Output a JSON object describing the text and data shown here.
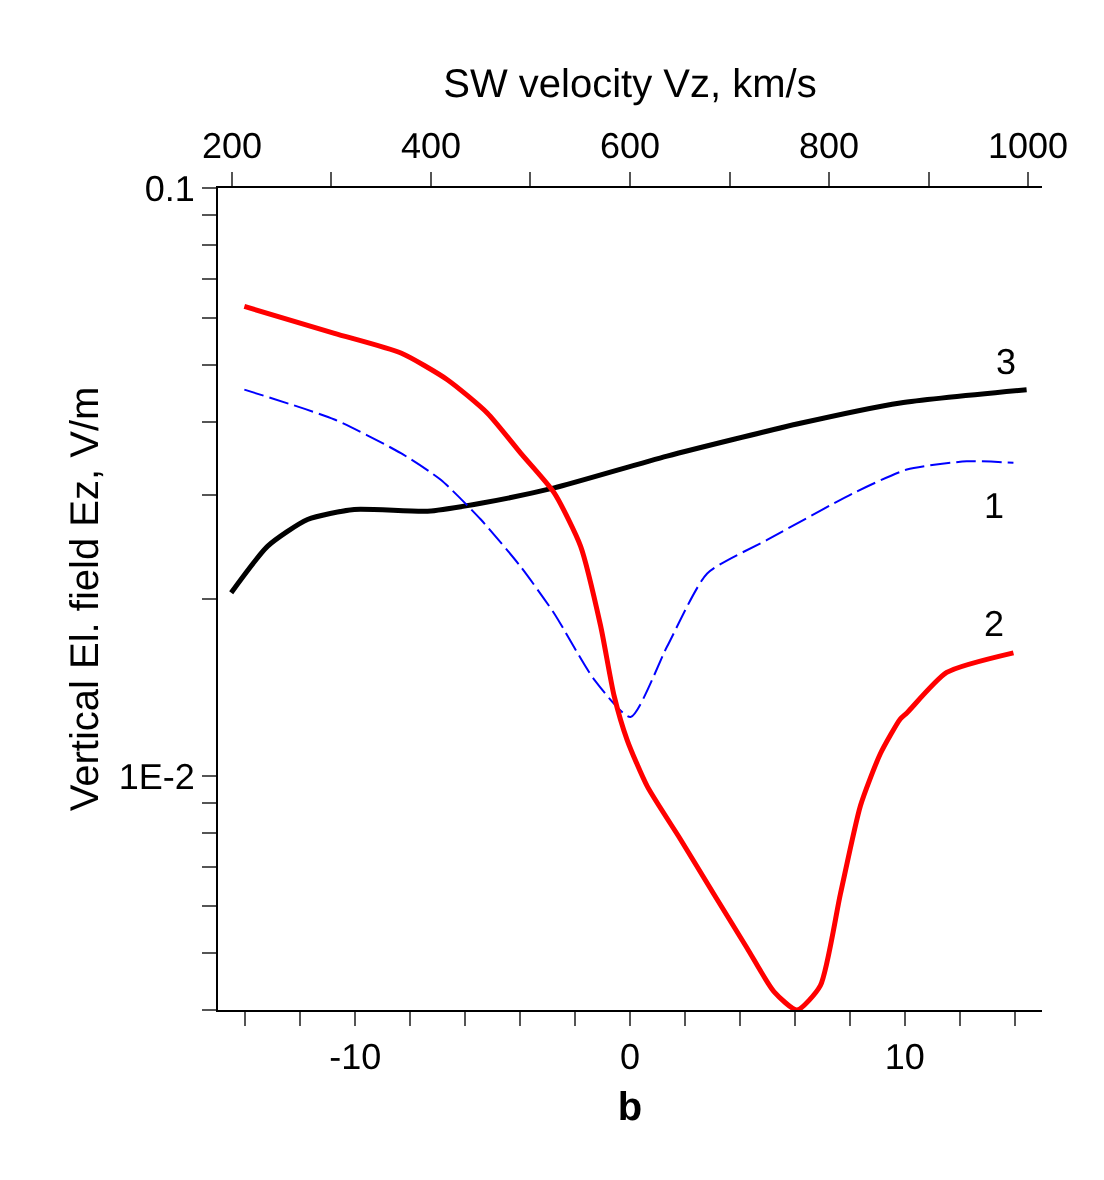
{
  "chart_data": {
    "type": "line",
    "xlabel": "b",
    "x2label": "SW velocity Vz, km/s",
    "ylabel": "Vertical El. field Ez, V/m",
    "xlim": [
      -15,
      15
    ],
    "xticks": [
      {
        "value": -14,
        "label": null
      },
      {
        "value": -12,
        "label": null
      },
      -10,
      {
        "value": -8,
        "label": null
      },
      {
        "value": -6,
        "label": null
      },
      {
        "value": -4,
        "label": null
      },
      {
        "value": -2,
        "label": null
      },
      0,
      {
        "value": 2,
        "label": null
      },
      {
        "value": 4,
        "label": null
      },
      {
        "value": 6,
        "label": null
      },
      {
        "value": 8,
        "label": null
      },
      10,
      {
        "value": 12,
        "label": null
      },
      {
        "value": 14,
        "label": null
      }
    ],
    "x2lim": [
      186,
      1014
    ],
    "x2ticks": [
      200,
      {
        "value": 300,
        "label": null
      },
      400,
      {
        "value": 500,
        "label": null
      },
      600,
      {
        "value": 700,
        "label": null
      },
      800,
      {
        "value": 900,
        "label": null
      },
      1000
    ],
    "ylim": [
      0.004,
      0.1
    ],
    "log": "y",
    "yticks": [
      {
        "value": 0.004,
        "label": null
      },
      {
        "value": 0.005,
        "label": null
      },
      {
        "value": 0.006,
        "label": null
      },
      {
        "value": 0.007,
        "label": null
      },
      {
        "value": 0.008,
        "label": null
      },
      {
        "value": 0.009,
        "label": null
      },
      {
        "value": 0.01,
        "label": "1E-2"
      },
      {
        "value": 0.02,
        "label": null
      },
      {
        "value": 0.03,
        "label": null
      },
      {
        "value": 0.04,
        "label": null
      },
      {
        "value": 0.05,
        "label": null
      },
      {
        "value": 0.06,
        "label": null
      },
      {
        "value": 0.07,
        "label": null
      },
      {
        "value": 0.08,
        "label": null
      },
      {
        "value": 0.09,
        "label": null
      },
      0.1
    ],
    "legend": false,
    "marker": "none",
    "series": [
      {
        "name": "3",
        "color": "#000000",
        "line_style": "solid",
        "x": [
          -14.52,
          -13.19,
          -11.74,
          -10.04,
          -7.37,
          -5.43,
          -2.76,
          1.35,
          6.2,
          9.84,
          14.44
        ],
        "values": [
          0.0205,
          0.0246,
          0.0273,
          0.0284,
          0.0282,
          0.0291,
          0.0309,
          0.035,
          0.0398,
          0.0431,
          0.0454
        ]
      },
      {
        "name": "1",
        "color": "#0000ff",
        "line_style": "dashed",
        "x": [
          -14.04,
          -10.76,
          -8.34,
          -6.89,
          -5.43,
          -3.98,
          -2.76,
          -1.31,
          0.02,
          1.35,
          2.81,
          4.99,
          8.15,
          10.08,
          12.26,
          13.96
        ],
        "values": [
          0.0454,
          0.0404,
          0.0354,
          0.0319,
          0.0273,
          0.0227,
          0.0189,
          0.0146,
          0.0126,
          0.0166,
          0.0221,
          0.0252,
          0.0303,
          0.0332,
          0.0343,
          0.0341
        ]
      },
      {
        "name": "2",
        "color": "#ff0000",
        "line_style": "solid",
        "x": [
          -14.04,
          -10.76,
          -8.34,
          -6.65,
          -5.19,
          -3.98,
          -2.76,
          -1.8,
          -1.07,
          -0.58,
          -0.1,
          0.63,
          1.84,
          3.05,
          4.26,
          5.24,
          6.08,
          6.93,
          7.66,
          8.39,
          9.11,
          9.84,
          10.08,
          11.53,
          13.96
        ],
        "values": [
          0.0629,
          0.0566,
          0.0524,
          0.0472,
          0.0414,
          0.0354,
          0.0303,
          0.0246,
          0.018,
          0.0137,
          0.0115,
          0.0096,
          0.0078,
          0.0063,
          0.0051,
          0.0043,
          0.004,
          0.0044,
          0.0063,
          0.0089,
          0.0109,
          0.0125,
          0.0128,
          0.015,
          0.0162
        ]
      }
    ]
  }
}
